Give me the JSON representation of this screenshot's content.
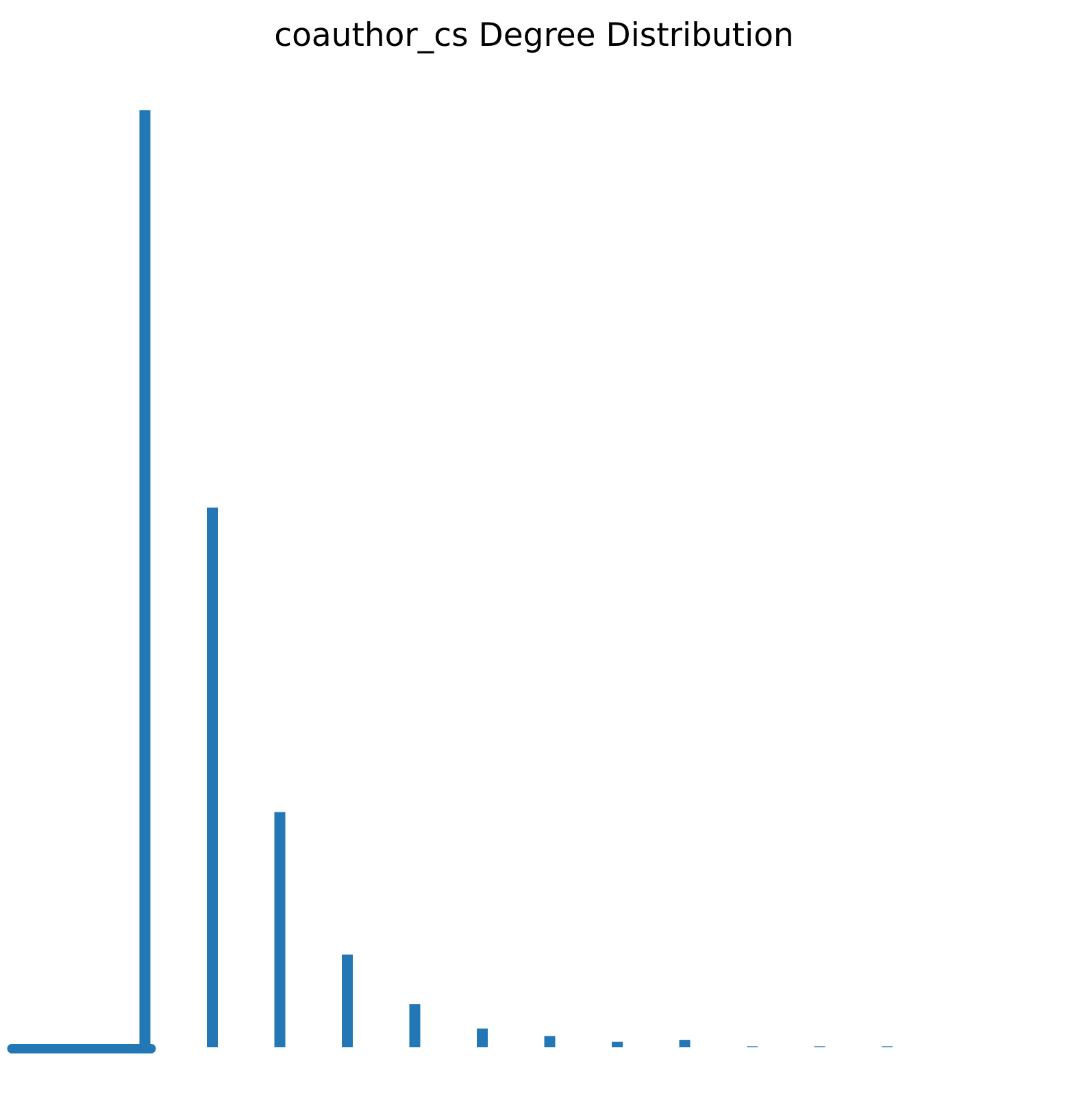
{
  "chart_data": {
    "type": "bar",
    "title": "coauthor_cs Degree Distribution",
    "xlabel": "",
    "ylabel": "",
    "axes_visible": false,
    "grid": false,
    "color": "#2277b4",
    "series": [
      {
        "x": [
          1,
          2,
          3,
          4,
          5,
          6,
          7,
          8,
          9,
          10,
          11,
          12,
          13
        ],
        "values": [
          0,
          1000,
          576,
          251,
          99,
          46,
          20,
          12,
          6,
          8,
          1,
          1,
          1
        ]
      }
    ],
    "baseline_segment": {
      "x_from": 0,
      "x_to": 2,
      "y": 0
    },
    "ylim": [
      0,
      1000
    ]
  }
}
